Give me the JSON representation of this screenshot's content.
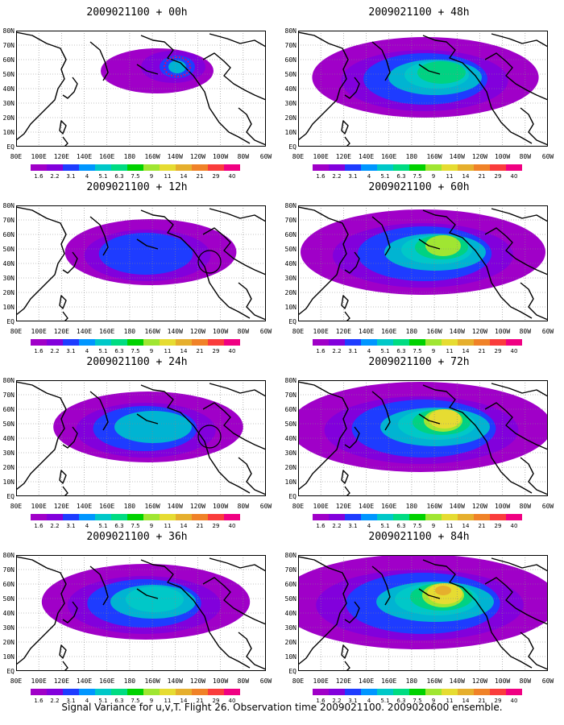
{
  "caption": "Signal Variance for u,v,T. Flight 26. Observation time 2009021100. 2009020600 ensemble.",
  "panels": [
    {
      "title": "2009021100 + 00h",
      "level": 0
    },
    {
      "title": "2009021100 + 48h",
      "level": 4
    },
    {
      "title": "2009021100 + 12h",
      "level": 1
    },
    {
      "title": "2009021100 + 60h",
      "level": 5
    },
    {
      "title": "2009021100 + 24h",
      "level": 2
    },
    {
      "title": "2009021100 + 72h",
      "level": 6
    },
    {
      "title": "2009021100 + 36h",
      "level": 3
    },
    {
      "title": "2009021100 + 84h",
      "level": 7
    }
  ],
  "lat_labels": [
    "80N",
    "70N",
    "60N",
    "50N",
    "40N",
    "30N",
    "20N",
    "10N",
    "EQ"
  ],
  "lon_labels": [
    "80E",
    "100E",
    "120E",
    "140E",
    "160E",
    "180",
    "160W",
    "140W",
    "120W",
    "100W",
    "80W",
    "60W"
  ],
  "colorbar": {
    "labels": [
      "1.6",
      "2.2",
      "3.1",
      "4",
      "5.1",
      "6.3",
      "7.5",
      "9",
      "11",
      "14",
      "21",
      "29",
      "40"
    ],
    "colors": [
      "#a000c8",
      "#8200dc",
      "#1e3cff",
      "#0096ff",
      "#00c8c8",
      "#00dc82",
      "#00d200",
      "#a0e632",
      "#e6dc32",
      "#e6af2d",
      "#f08228",
      "#fa3c3c",
      "#f00082"
    ]
  },
  "map_colors": {
    "purple": "#a000c8",
    "violet": "#8200dc",
    "blue": "#1e3cff",
    "cyan": "#00b4d2",
    "teal": "#00c8c8",
    "green": "#00d282",
    "lime": "#a0e632",
    "yellow": "#e6dc32",
    "orange": "#e6af2d",
    "coastline": "#000000",
    "grid": "#888888",
    "contour": "#e0006e"
  }
}
